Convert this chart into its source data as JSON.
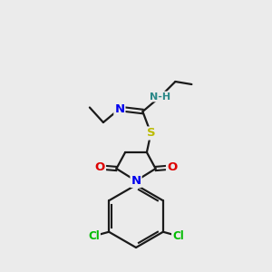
{
  "background_color": "#ebebeb",
  "bond_color": "#1a1a1a",
  "colors": {
    "N": "#0000ee",
    "O": "#dd0000",
    "S": "#bbbb00",
    "Cl": "#00bb00",
    "C": "#1a1a1a",
    "NH": "#2a8888"
  },
  "figsize": [
    3.0,
    3.0
  ],
  "dpi": 100
}
